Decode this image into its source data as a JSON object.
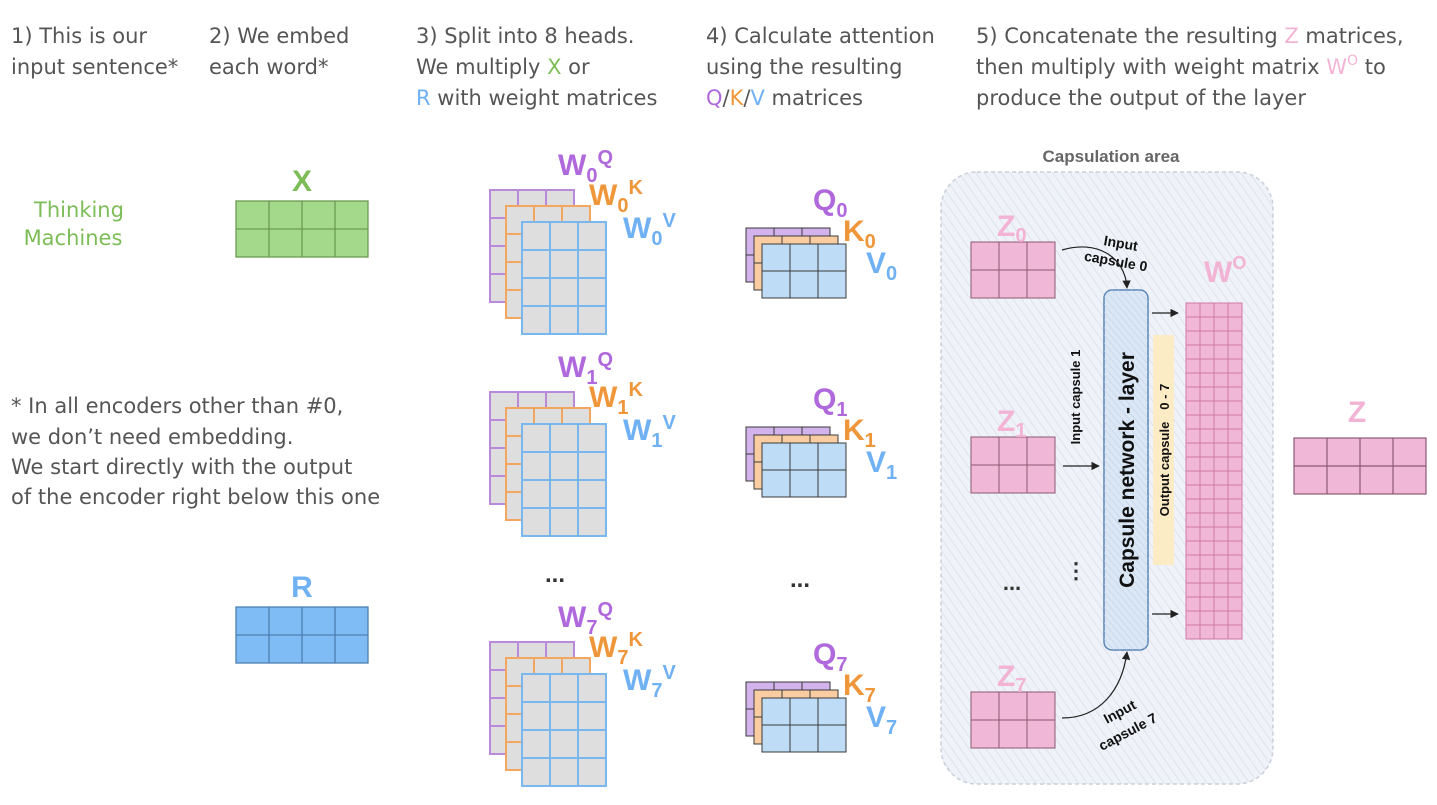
{
  "steps": {
    "s1": {
      "l1": "1) This is our",
      "l2": "input sentence*"
    },
    "s2": {
      "l1": "2) We embed",
      "l2": "each word*"
    },
    "s3": {
      "l1": "3) Split into 8 heads.",
      "l2_pre": "We multiply ",
      "l2_x": "X",
      "l2_post": " or",
      "l3_r": "R",
      "l3_post": " with weight matrices"
    },
    "s4": {
      "l1": "4) Calculate attention",
      "l2": "using the resulting",
      "l3_q": "Q",
      "l3_s1": "/",
      "l3_k": "K",
      "l3_s2": "/",
      "l3_v": "V",
      "l3_post": " matrices"
    },
    "s5": {
      "l1_pre": "5) Concatenate the resulting ",
      "l1_z": "Z",
      "l1_post": " matrices,",
      "l2_pre": "then multiply with weight matrix ",
      "l2_w": "W",
      "l2_sup": "O",
      "l2_post": " to",
      "l3": "produce the output of the layer"
    }
  },
  "input": {
    "word1": "Thinking",
    "word2": "Machines"
  },
  "embed": {
    "x_label": "X",
    "r_label": "R"
  },
  "note": {
    "l1": "* In all encoders other than #0,",
    "l2": "we don’t need embedding.",
    "l3": "We start directly with the output",
    "l4": "of the encoder right below this one"
  },
  "heads": [
    {
      "index": "0",
      "w": "W",
      "q": "Q",
      "k": "K",
      "v": "V"
    },
    {
      "index": "1",
      "w": "W",
      "q": "Q",
      "k": "K",
      "v": "V"
    },
    {
      "index": "7",
      "w": "W",
      "q": "Q",
      "k": "K",
      "v": "V"
    }
  ],
  "ellipsis": "...",
  "capsule": {
    "area_title": "Capsulation area",
    "z_label": "Z",
    "z_indices": [
      "0",
      "1",
      "7"
    ],
    "layer_label": "Capsule network - layer",
    "input_capsule_0": {
      "l1": "Input",
      "l2": "capsule 0"
    },
    "input_capsule_1": "Input capsule 1",
    "input_capsule_7": {
      "l1": "Input",
      "l2": "capsule 7"
    },
    "output_capsule": "Output capsule",
    "output_range": "0 - 7",
    "vdots": "⋮",
    "wo_label": "W",
    "wo_sup": "O"
  },
  "output": {
    "z_label": "Z"
  },
  "colors": {
    "text": "#555555",
    "green": "#7dbd57",
    "green_fill": "#a4d98c",
    "green_stroke": "#6a9b52",
    "blue": "#6fb1f2",
    "blue_fill": "#7fbcf5",
    "blue_stroke": "#4d7fb0",
    "purple": "#b069dc",
    "orange": "#f0963a",
    "pink": "#f2b3d5",
    "pink_fill": "#f1b7d6",
    "gray_fill": "#dedede",
    "area_fill": "#eff2f8"
  }
}
